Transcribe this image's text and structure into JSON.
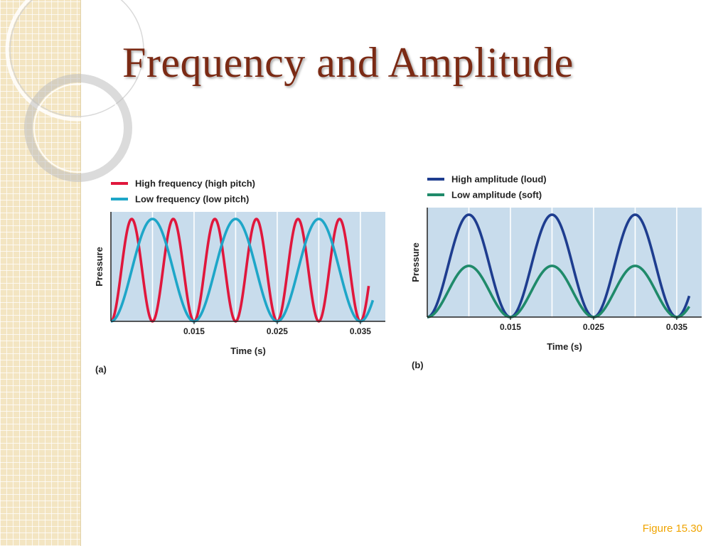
{
  "slide": {
    "title": "Frequency and Amplitude",
    "figure_label": "Figure 15.30"
  },
  "colors": {
    "title": "#7b2a14",
    "accent": "#f0a400",
    "plot_bg": "#c8dcec",
    "high_freq": "#e0173c",
    "low_freq": "#1ea6c8",
    "high_amp": "#1e3d8f",
    "low_amp": "#1f8a6a"
  },
  "chart_data": [
    {
      "type": "line",
      "panel_label": "(a)",
      "xlabel": "Time (s)",
      "ylabel": "Pressure",
      "xlim": [
        0.005,
        0.038
      ],
      "ylim": [
        0,
        1
      ],
      "x_ticks": [
        0.015,
        0.025,
        0.035
      ],
      "x_tick_labels": [
        "0.015",
        "0.025",
        "0.035"
      ],
      "grid": "vertical",
      "legend": "top-left",
      "series": [
        {
          "name": "High frequency (high pitch)",
          "color": "#e0173c",
          "period_s": 0.005,
          "x_start": 0.005,
          "x_end": 0.036,
          "peak_x": [
            0.0075,
            0.0125,
            0.0175,
            0.0225,
            0.0275,
            0.0325
          ],
          "peak_y": 1.0,
          "trough_y": 0.0
        },
        {
          "name": "Low frequency (low pitch)",
          "color": "#1ea6c8",
          "period_s": 0.01,
          "x_start": 0.005,
          "x_end": 0.0365,
          "peak_x": [
            0.01,
            0.02,
            0.03
          ],
          "peak_y": 1.0,
          "trough_y": 0.0
        }
      ]
    },
    {
      "type": "line",
      "panel_label": "(b)",
      "xlabel": "Time (s)",
      "ylabel": "Pressure",
      "xlim": [
        0.005,
        0.038
      ],
      "ylim": [
        0,
        1
      ],
      "x_ticks": [
        0.015,
        0.025,
        0.035
      ],
      "x_tick_labels": [
        "0.015",
        "0.025",
        "0.035"
      ],
      "grid": "vertical",
      "legend": "top-left",
      "series": [
        {
          "name": "High amplitude (loud)",
          "color": "#1e3d8f",
          "period_s": 0.01,
          "x_start": 0.005,
          "x_end": 0.0365,
          "peak_x": [
            0.01,
            0.02,
            0.03
          ],
          "peak_y": 1.0,
          "trough_y": 0.0
        },
        {
          "name": "Low amplitude (soft)",
          "color": "#1f8a6a",
          "period_s": 0.01,
          "x_start": 0.005,
          "x_end": 0.0365,
          "peak_x": [
            0.01,
            0.02,
            0.03
          ],
          "peak_y": 0.5,
          "trough_y": 0.0
        }
      ]
    }
  ]
}
